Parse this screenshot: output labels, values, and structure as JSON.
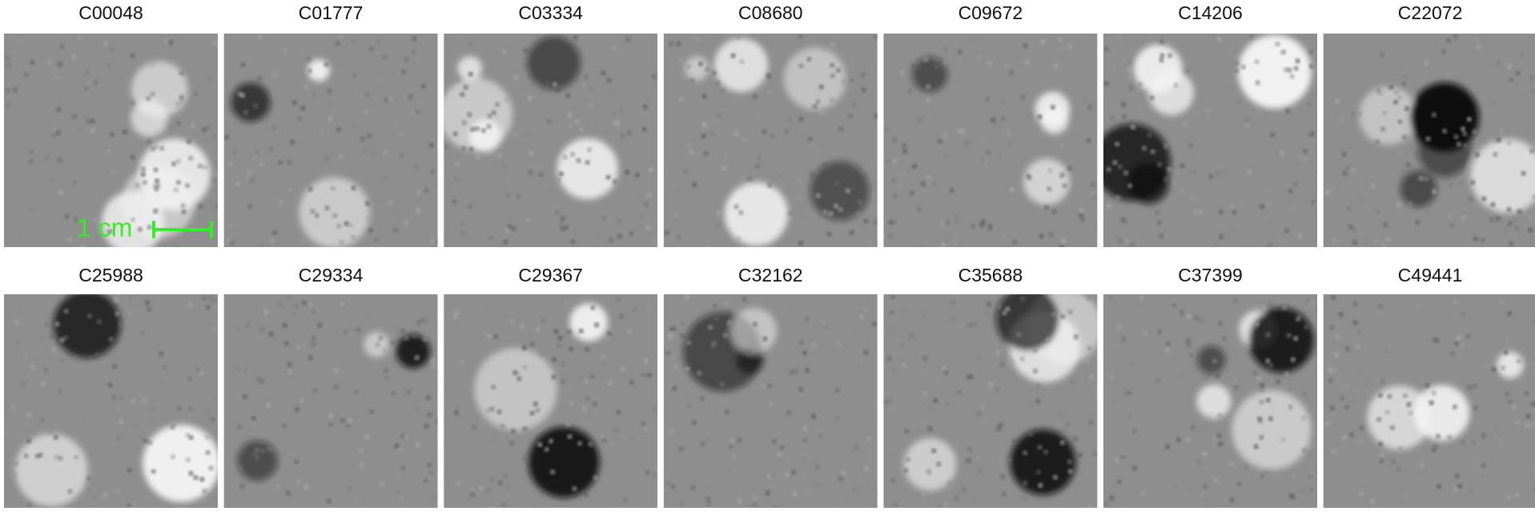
{
  "rows": [
    [
      "C00048",
      "C01777",
      "C03334",
      "C08680",
      "C09672",
      "C14206",
      "C22072"
    ],
    [
      "C25988",
      "C29334",
      "C29367",
      "C32162",
      "C35688",
      "C37399",
      "C49441"
    ]
  ],
  "scale_bar": "1 cm"
}
